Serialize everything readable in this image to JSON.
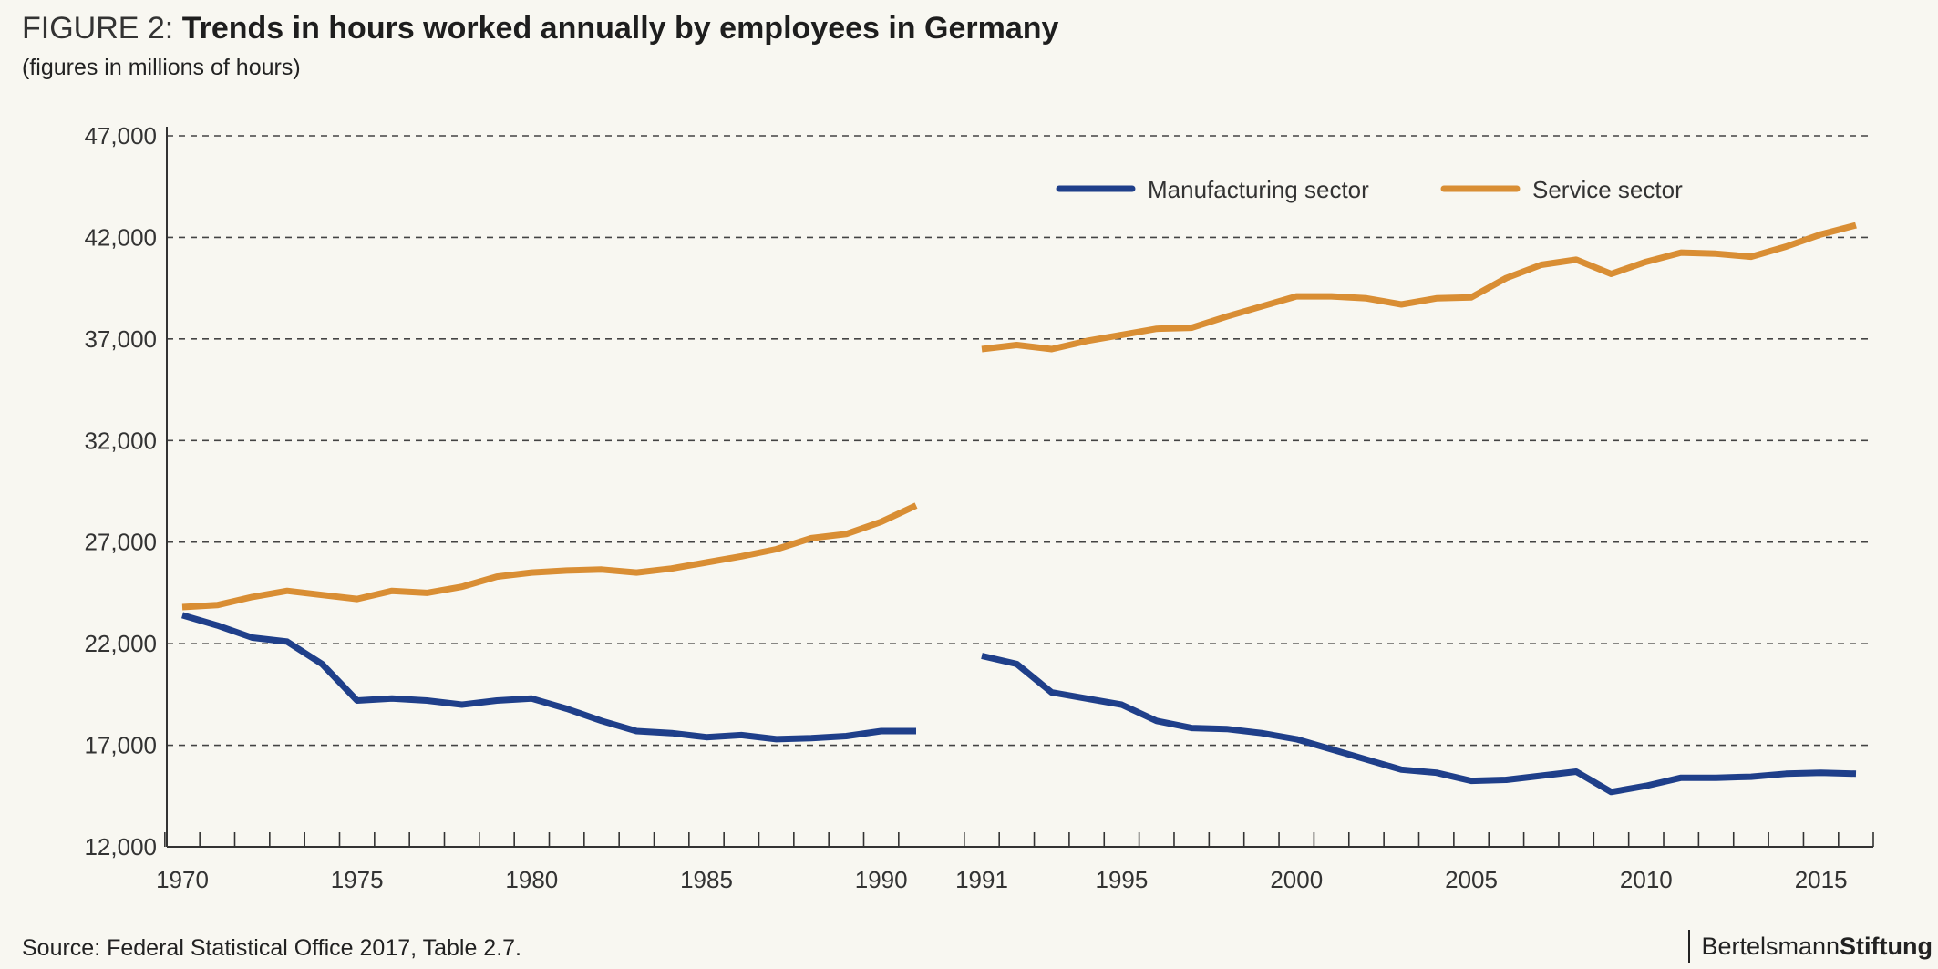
{
  "header": {
    "figure_prefix": "FIGURE 2: ",
    "title": "Trends in hours worked annually by employees in Germany",
    "subtitle": "(figures in millions of hours)"
  },
  "footer": {
    "source": "Source: Federal Statistical Office 2017, Table 2.7.",
    "brand_part1": "Bertelsmann",
    "brand_part2": "Stiftung"
  },
  "colors": {
    "manufacturing": "#1f3f8a",
    "service": "#d98e34",
    "grid": "#444444",
    "axis": "#333333"
  },
  "chart_data": {
    "type": "line",
    "title": "Trends in hours worked annually by employees in Germany",
    "ylabel": "",
    "xlabel": "",
    "ylim": [
      12000,
      47000
    ],
    "y_ticks": [
      12000,
      17000,
      22000,
      27000,
      32000,
      37000,
      42000,
      47000
    ],
    "y_tick_labels": [
      "12,000",
      "17,000",
      "22,000",
      "27,000",
      "32,000",
      "37,000",
      "42,000",
      "47,000"
    ],
    "grid": "horizontal dashed",
    "legend_position": "top-right",
    "segments": [
      {
        "x_range": [
          1970,
          1991
        ],
        "x_tick_labels": [
          {
            "x": 1970,
            "label": "1970"
          },
          {
            "x": 1975,
            "label": "1975"
          },
          {
            "x": 1980,
            "label": "1980"
          },
          {
            "x": 1985,
            "label": "1985"
          },
          {
            "x": 1990,
            "label": "1990"
          }
        ],
        "series": [
          {
            "name": "Manufacturing sector",
            "x": [
              1970,
              1971,
              1972,
              1973,
              1974,
              1975,
              1976,
              1977,
              1978,
              1979,
              1980,
              1981,
              1982,
              1983,
              1984,
              1985,
              1986,
              1987,
              1988,
              1989,
              1990,
              1991
            ],
            "values": [
              23400,
              22900,
              22300,
              22100,
              21000,
              19200,
              19300,
              19200,
              19000,
              19200,
              19300,
              18800,
              18200,
              17700,
              17600,
              17400,
              17500,
              17300,
              17350,
              17450,
              17700,
              17700
            ]
          },
          {
            "name": "Service sector",
            "x": [
              1970,
              1971,
              1972,
              1973,
              1974,
              1975,
              1976,
              1977,
              1978,
              1979,
              1980,
              1981,
              1982,
              1983,
              1984,
              1985,
              1986,
              1987,
              1988,
              1989,
              1990,
              1991
            ],
            "values": [
              23800,
              23900,
              24300,
              24600,
              24400,
              24200,
              24600,
              24500,
              24800,
              25300,
              25500,
              25600,
              25650,
              25500,
              25700,
              26000,
              26300,
              26650,
              27200,
              27400,
              28000,
              28800
            ]
          }
        ]
      },
      {
        "x_range": [
          1991,
          2016
        ],
        "x_tick_labels": [
          {
            "x": 1991,
            "label": "1991"
          },
          {
            "x": 1995,
            "label": "1995"
          },
          {
            "x": 2000,
            "label": "2000"
          },
          {
            "x": 2005,
            "label": "2005"
          },
          {
            "x": 2010,
            "label": "2010"
          },
          {
            "x": 2015,
            "label": "2015"
          }
        ],
        "series": [
          {
            "name": "Manufacturing sector",
            "x": [
              1991,
              1992,
              1993,
              1994,
              1995,
              1996,
              1997,
              1998,
              1999,
              2000,
              2001,
              2002,
              2003,
              2004,
              2005,
              2006,
              2007,
              2008,
              2009,
              2010,
              2011,
              2012,
              2013,
              2014,
              2015,
              2016
            ],
            "values": [
              21400,
              21000,
              19600,
              19300,
              19000,
              18200,
              17850,
              17800,
              17600,
              17300,
              16800,
              16300,
              15800,
              15650,
              15250,
              15300,
              15500,
              15700,
              14700,
              15000,
              15400,
              15400,
              15450,
              15600,
              15650,
              15600
            ]
          },
          {
            "name": "Service sector",
            "x": [
              1991,
              1992,
              1993,
              1994,
              1995,
              1996,
              1997,
              1998,
              1999,
              2000,
              2001,
              2002,
              2003,
              2004,
              2005,
              2006,
              2007,
              2008,
              2009,
              2010,
              2011,
              2012,
              2013,
              2014,
              2015,
              2016
            ],
            "values": [
              36500,
              36700,
              36500,
              36900,
              37200,
              37500,
              37550,
              38100,
              38600,
              39100,
              39100,
              39000,
              38700,
              39000,
              39050,
              40000,
              40650,
              40900,
              40200,
              40800,
              41250,
              41200,
              41050,
              41550,
              42150,
              42600
            ]
          }
        ]
      }
    ],
    "legend": [
      {
        "name": "Manufacturing sector"
      },
      {
        "name": "Service sector"
      }
    ]
  }
}
